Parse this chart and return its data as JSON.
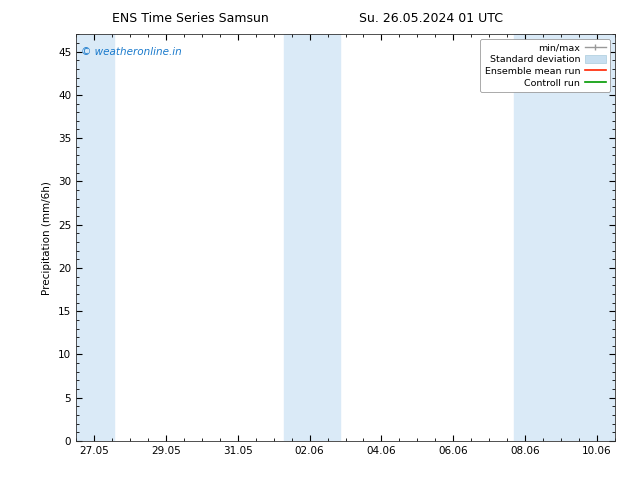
{
  "title_left": "ENS Time Series Samsun",
  "title_right": "Su. 26.05.2024 01 UTC",
  "ylabel": "Precipitation (mm/6h)",
  "ylim": [
    0,
    47
  ],
  "yticks": [
    0,
    5,
    10,
    15,
    20,
    25,
    30,
    35,
    40,
    45
  ],
  "xtick_labels": [
    "27.05",
    "29.05",
    "31.05",
    "02.06",
    "04.06",
    "06.06",
    "08.06",
    "10.06"
  ],
  "watermark": "© weatheronline.in",
  "watermark_color": "#1a7acc",
  "background_color": "#ffffff",
  "band_color": "#daeaf7",
  "shaded_ranges": [
    [
      0.5,
      1.55
    ],
    [
      6.3,
      7.85
    ],
    [
      12.7,
      15.5
    ]
  ],
  "xtick_positions": [
    1,
    3,
    5,
    7,
    9,
    11,
    13,
    15
  ],
  "x_min": 0.5,
  "x_max": 15.5,
  "legend_labels": [
    "min/max",
    "Standard deviation",
    "Ensemble mean run",
    "Controll run"
  ],
  "legend_colors": [
    "#aaaaaa",
    "#c5dcef",
    "#ff0000",
    "#009900"
  ],
  "title_fontsize": 9,
  "axis_fontsize": 7.5,
  "tick_fontsize": 7.5
}
